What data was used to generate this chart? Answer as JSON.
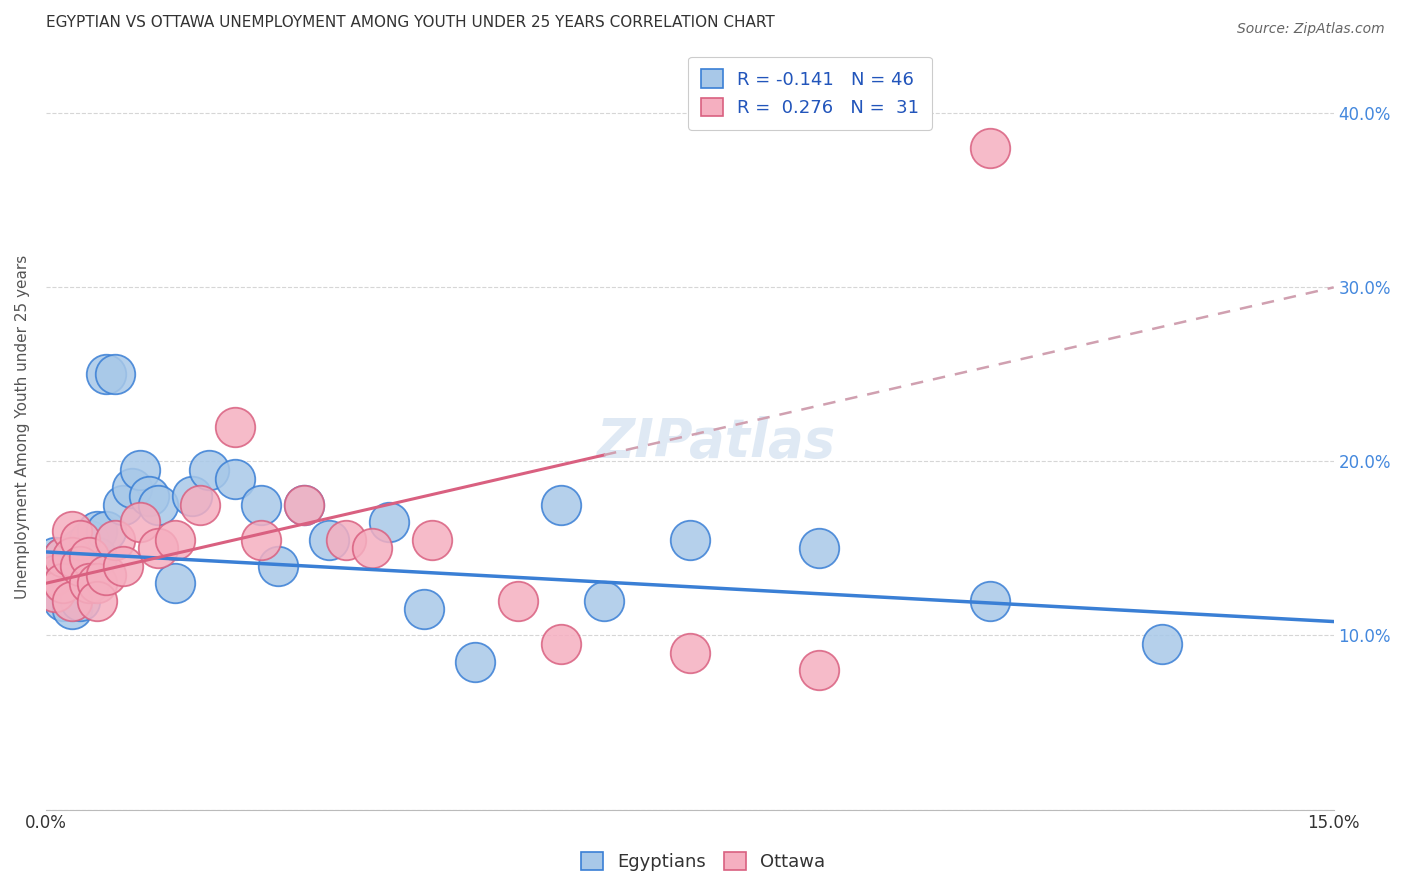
{
  "title": "EGYPTIAN VS OTTAWA UNEMPLOYMENT AMONG YOUTH UNDER 25 YEARS CORRELATION CHART",
  "source": "Source: ZipAtlas.com",
  "ylabel": "Unemployment Among Youth under 25 years",
  "x_min": 0.0,
  "x_max": 0.15,
  "y_min": 0.0,
  "y_max": 0.44,
  "x_ticks": [
    0.0,
    0.03,
    0.06,
    0.09,
    0.12,
    0.15
  ],
  "x_tick_labels": [
    "0.0%",
    "",
    "",
    "",
    "",
    "15.0%"
  ],
  "y_ticks": [
    0.0,
    0.1,
    0.2,
    0.3,
    0.4
  ],
  "y_tick_labels_right": [
    "",
    "10.0%",
    "20.0%",
    "30.0%",
    "40.0%"
  ],
  "egyptians_color": "#a8c8e8",
  "ottawa_color": "#f5afc0",
  "egyptians_R": -0.141,
  "egyptians_N": 46,
  "ottawa_R": 0.276,
  "ottawa_N": 31,
  "trend_egyptian_color": "#3a7fd5",
  "trend_ottawa_color": "#d96080",
  "trend_ottawa_dashed_color": "#d0a0b0",
  "watermark": "ZIPatlas",
  "legend_label_egyptians": "Egyptians",
  "legend_label_ottawa": "Ottawa",
  "egyptians_x": [
    0.001,
    0.001,
    0.001,
    0.002,
    0.002,
    0.002,
    0.002,
    0.003,
    0.003,
    0.003,
    0.003,
    0.003,
    0.004,
    0.004,
    0.004,
    0.004,
    0.005,
    0.005,
    0.005,
    0.006,
    0.006,
    0.007,
    0.007,
    0.008,
    0.009,
    0.01,
    0.011,
    0.012,
    0.013,
    0.015,
    0.017,
    0.019,
    0.022,
    0.025,
    0.027,
    0.03,
    0.033,
    0.04,
    0.044,
    0.05,
    0.06,
    0.065,
    0.075,
    0.09,
    0.11,
    0.13
  ],
  "egyptians_y": [
    0.145,
    0.135,
    0.125,
    0.145,
    0.135,
    0.13,
    0.12,
    0.14,
    0.135,
    0.125,
    0.12,
    0.115,
    0.15,
    0.14,
    0.13,
    0.12,
    0.155,
    0.145,
    0.13,
    0.16,
    0.145,
    0.25,
    0.16,
    0.25,
    0.175,
    0.185,
    0.195,
    0.18,
    0.175,
    0.13,
    0.18,
    0.195,
    0.19,
    0.175,
    0.14,
    0.175,
    0.155,
    0.165,
    0.115,
    0.085,
    0.175,
    0.12,
    0.155,
    0.15,
    0.12,
    0.095
  ],
  "ottawa_x": [
    0.001,
    0.001,
    0.002,
    0.002,
    0.003,
    0.003,
    0.003,
    0.004,
    0.004,
    0.005,
    0.005,
    0.006,
    0.006,
    0.007,
    0.008,
    0.009,
    0.011,
    0.013,
    0.015,
    0.018,
    0.022,
    0.025,
    0.03,
    0.035,
    0.038,
    0.045,
    0.055,
    0.06,
    0.075,
    0.09,
    0.11
  ],
  "ottawa_y": [
    0.135,
    0.125,
    0.145,
    0.13,
    0.16,
    0.145,
    0.12,
    0.155,
    0.14,
    0.145,
    0.13,
    0.13,
    0.12,
    0.135,
    0.155,
    0.14,
    0.165,
    0.15,
    0.155,
    0.175,
    0.22,
    0.155,
    0.175,
    0.155,
    0.15,
    0.155,
    0.12,
    0.095,
    0.09,
    0.08,
    0.38
  ],
  "title_fontsize": 11,
  "source_fontsize": 10,
  "axis_label_fontsize": 11,
  "tick_fontsize": 12,
  "legend_fontsize": 13,
  "watermark_fontsize": 38,
  "marker_size": 9,
  "marker_linewidth": 1.3,
  "background_color": "#ffffff",
  "grid_color": "#cccccc",
  "right_ytick_color": "#4488dd"
}
